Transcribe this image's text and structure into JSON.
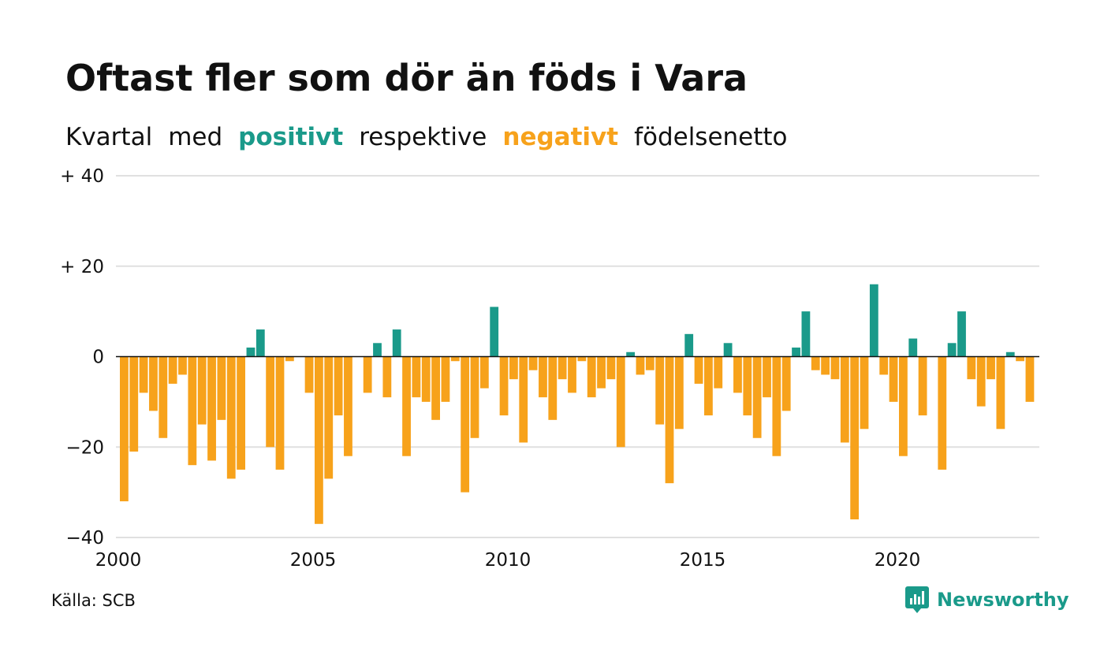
{
  "header": {
    "title": "Oftast fler som dör än föds i Vara",
    "subtitle": {
      "part1": "Kvartal",
      "part2": "med",
      "positive_word": "positivt",
      "part3": "respektive",
      "negative_word": "negativt",
      "part4": "födelsenetto"
    }
  },
  "colors": {
    "positive": "#1a9a8a",
    "negative": "#f7a21b",
    "gridline": "#e0e0e0",
    "zeroline": "#111111",
    "text": "#111111"
  },
  "footer": {
    "source": "Källa: SCB",
    "brand": "Newsworthy",
    "brand_icon": "newsworthy-logo-icon"
  },
  "chart_data": {
    "type": "bar",
    "title": "Oftast fler som dör än föds i Vara",
    "subtitle": "Kvartal med positivt respektive negativt födelsenetto",
    "xlabel": "",
    "ylabel": "",
    "ylim": [
      -40,
      40
    ],
    "yticks": [
      {
        "value": 40,
        "label": "+ 40"
      },
      {
        "value": 20,
        "label": "+ 20"
      },
      {
        "value": 0,
        "label": "0"
      },
      {
        "value": -20,
        "label": "−20"
      },
      {
        "value": -40,
        "label": "−40"
      }
    ],
    "xticks": [
      "2000",
      "2005",
      "2010",
      "2015",
      "2020"
    ],
    "grid": true,
    "start_year": 2000,
    "values": [
      -32,
      -21,
      -8,
      -12,
      -18,
      -6,
      -4,
      -24,
      -15,
      -23,
      -14,
      -27,
      -25,
      2,
      6,
      -20,
      -25,
      -1,
      0,
      -8,
      -37,
      -27,
      -13,
      -22,
      0,
      -8,
      3,
      -9,
      6,
      -22,
      -9,
      -10,
      -14,
      -10,
      -1,
      -30,
      -18,
      -7,
      11,
      -13,
      -5,
      -19,
      -3,
      -9,
      -14,
      -5,
      -8,
      -1,
      -9,
      -7,
      -5,
      -20,
      1,
      -4,
      -3,
      -15,
      -28,
      -16,
      5,
      -6,
      -13,
      -7,
      3,
      -8,
      -13,
      -18,
      -9,
      -22,
      -12,
      2,
      10,
      -3,
      -4,
      -5,
      -19,
      -36,
      -16,
      16,
      -4,
      -10,
      -22,
      4,
      -13,
      0,
      -25,
      3,
      10,
      -5,
      -11,
      -5,
      -16,
      1,
      -1,
      -10
    ]
  }
}
